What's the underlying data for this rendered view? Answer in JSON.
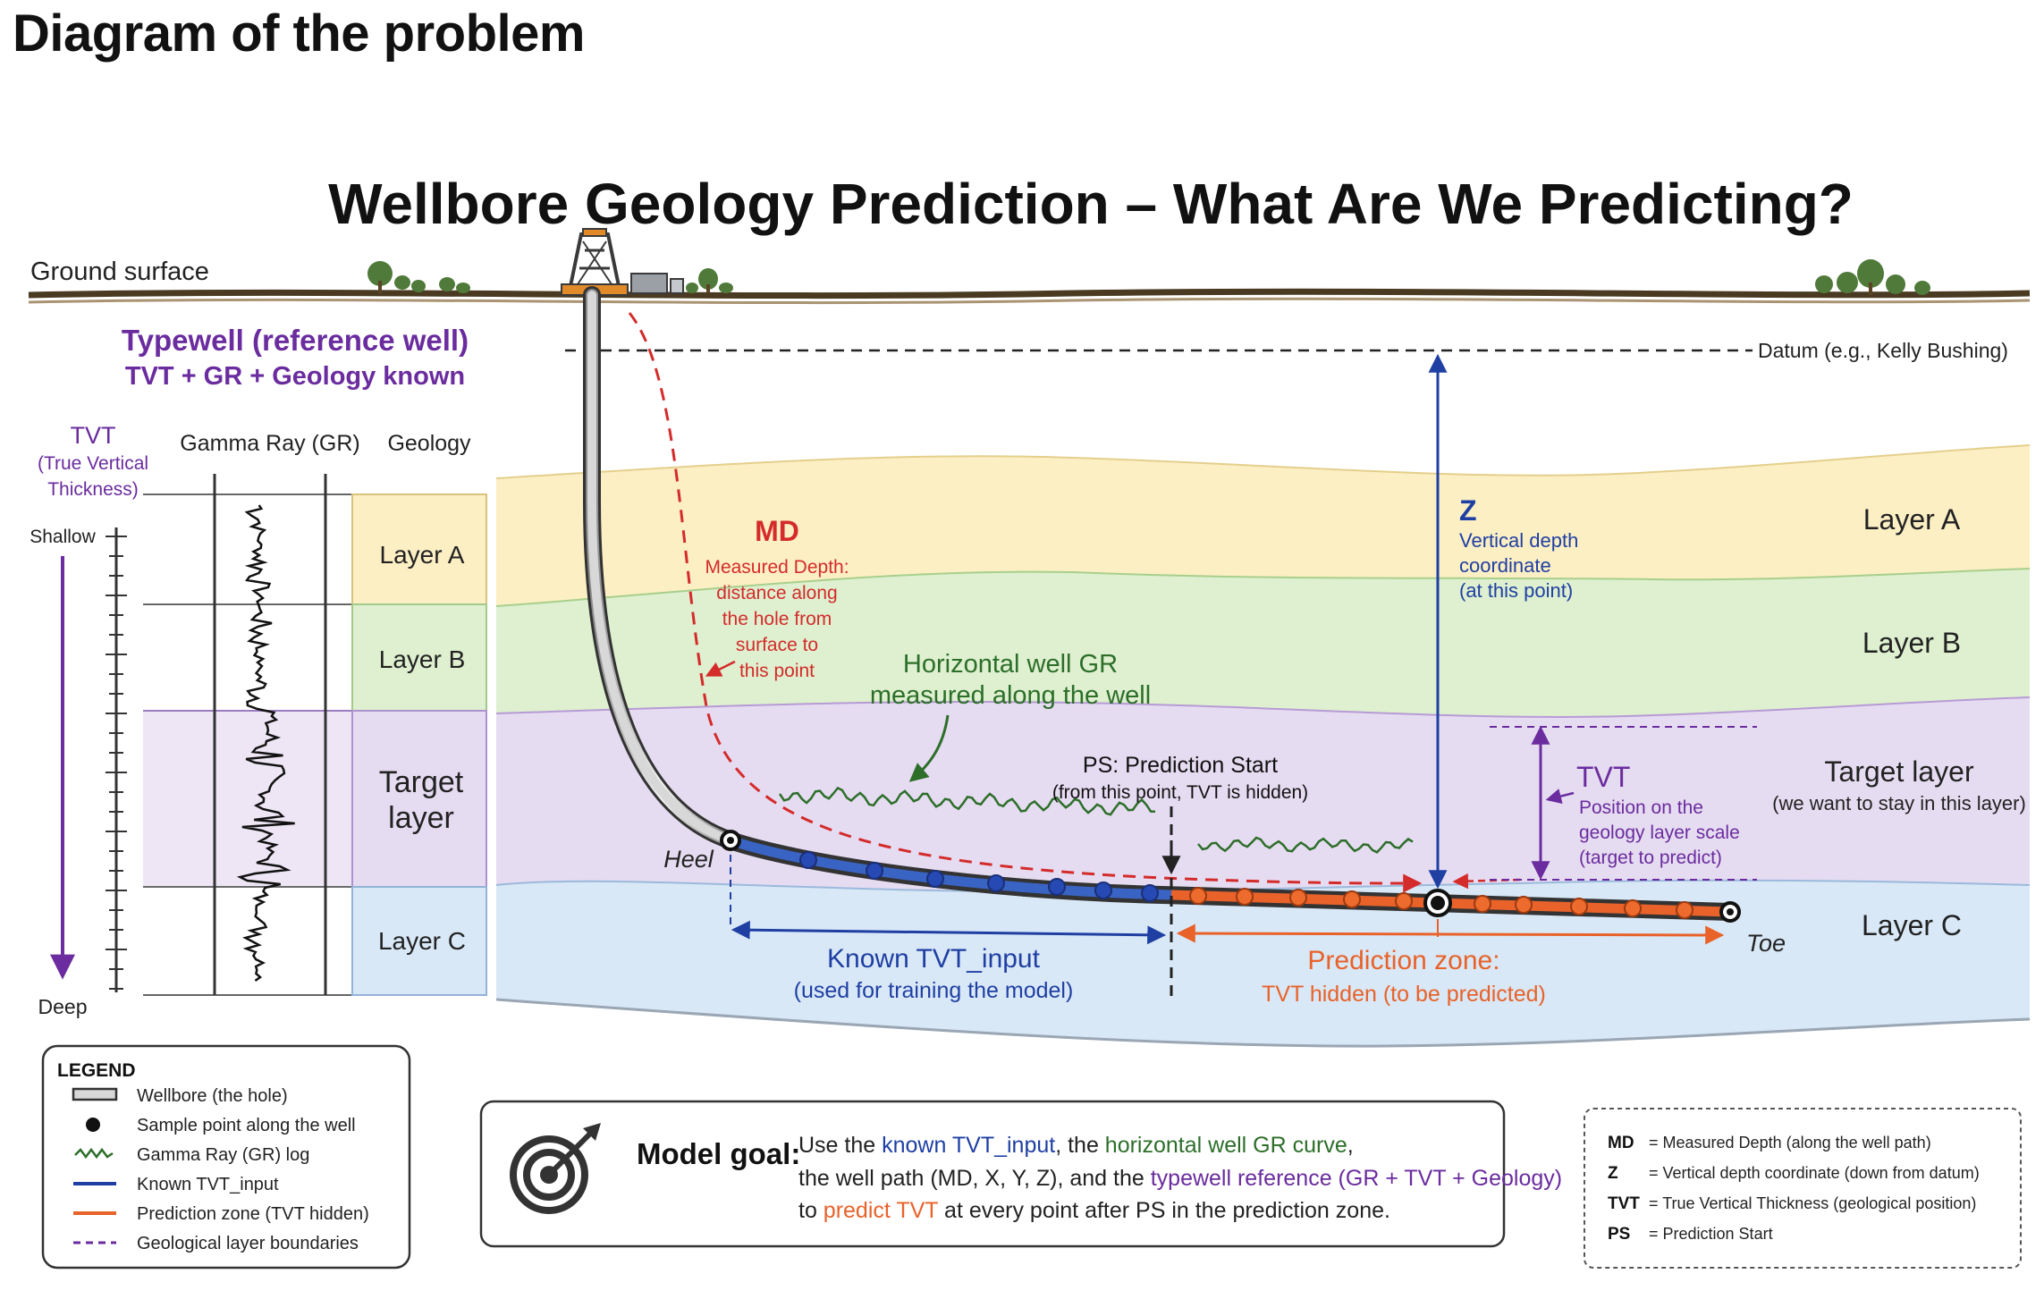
{
  "header": {
    "title": "Diagram of the problem"
  },
  "diagram": {
    "title": "Wellbore Geology Prediction – What Are We Predicting?",
    "ground_surface": "Ground surface",
    "datum": "Datum (e.g., Kelly Bushing)",
    "typewell": {
      "title": "Typewell (reference well)",
      "subtitle": "TVT + GR + Geology known",
      "tvt_label": "TVT",
      "tvt_sub1": "(True Vertical",
      "tvt_sub2": "Thickness)",
      "gr_label": "Gamma Ray (GR)",
      "geology_label": "Geology",
      "shallow": "Shallow",
      "deep": "Deep",
      "layers": [
        "Layer A",
        "Layer B",
        "Target",
        "layer",
        "Layer C"
      ]
    },
    "md": {
      "title": "MD",
      "lines": [
        "Measured Depth:",
        "distance along",
        "the hole from",
        "surface to",
        "this point"
      ]
    },
    "horizontal_gr": [
      "Horizontal well GR",
      "measured along the well"
    ],
    "ps": {
      "title": "PS: Prediction Start",
      "sub": "(from this point, TVT is hidden)"
    },
    "z": {
      "title": "Z",
      "lines": [
        "Vertical depth",
        "coordinate",
        "(at this point)"
      ]
    },
    "tvt": {
      "title": "TVT",
      "lines": [
        "Position on the",
        "geology layer scale",
        "(target to predict)"
      ]
    },
    "layers_right": {
      "a": "Layer A",
      "b": "Layer B",
      "target": "Target layer",
      "target_sub": "(we want to stay in this layer)",
      "c": "Layer C"
    },
    "heel": "Heel",
    "toe": "Toe",
    "known": {
      "title": "Known TVT_input",
      "sub": "(used for training the model)"
    },
    "prediction": {
      "title": "Prediction zone:",
      "sub": "TVT hidden (to be predicted)"
    },
    "legend": {
      "title": "LEGEND",
      "items": [
        "Wellbore (the hole)",
        "Sample point along the well",
        "Gamma Ray (GR) log",
        "Known TVT_input",
        "Prediction zone (TVT hidden)",
        "Geological layer boundaries"
      ]
    },
    "goal": {
      "label": "Model goal:",
      "l1_a": "Use the ",
      "l1_b": "known TVT_input",
      "l1_c": ", the ",
      "l1_d": "horizontal well GR curve",
      "l1_e": ",",
      "l2_a": "the well path (MD, X, Y, Z), and the ",
      "l2_b": "typewell reference (GR + TVT + Geology)",
      "l3_a": "to ",
      "l3_b": "predict TVT",
      "l3_c": " at every point after PS in the prediction zone."
    },
    "abbrev": [
      {
        "key": "MD",
        "text": "=  Measured Depth (along the well path)"
      },
      {
        "key": "Z",
        "text": "=  Vertical depth coordinate (down from datum)"
      },
      {
        "key": "TVT",
        "text": "=  True Vertical Thickness (geological position)"
      },
      {
        "key": "PS",
        "text": "=  Prediction Start"
      }
    ],
    "colors": {
      "purple": "#6a2c9e",
      "red": "#d42b2b",
      "green": "#2d6e2a",
      "blue": "#1f3fa3",
      "orange": "#e8622a",
      "layer_a": "#fcefc4",
      "layer_b": "#def0cf",
      "target": "#e6dcf1",
      "layer_c": "#d9e8f6"
    }
  }
}
